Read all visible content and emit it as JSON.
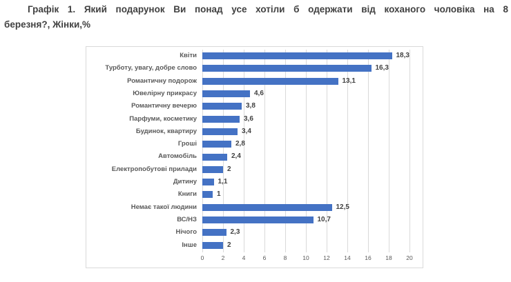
{
  "title": {
    "line1": "Графік 1. Який подарунок Ви понад усе хотіли б одержати від коханого чоловіка на 8",
    "line2": "березня?, Жінки,%"
  },
  "chart_data": {
    "type": "bar",
    "orientation": "horizontal",
    "title": "Графік 1. Який подарунок Ви понад усе хотіли б одержати від коханого чоловіка на 8 березня?, Жінки,%",
    "categories": [
      "Квіти",
      "Турботу, увагу, добре слово",
      "Романтичну подорож",
      "Ювелірну прикрасу",
      "Романтичну вечерю",
      "Парфуми, косметику",
      "Будинок, квартиру",
      "Гроші",
      "Автомобіль",
      "Електропобутові прилади",
      "Дитину",
      "Книги",
      "Немає такої людини",
      "ВС/НЗ",
      "Нічого",
      "Інше"
    ],
    "values": [
      18.3,
      16.3,
      13.1,
      4.6,
      3.8,
      3.6,
      3.4,
      2.8,
      2.4,
      2,
      1.1,
      1,
      12.5,
      10.7,
      2.3,
      2
    ],
    "value_labels": [
      "18,3",
      "16,3",
      "13,1",
      "4,6",
      "3,8",
      "3,6",
      "3,4",
      "2,8",
      "2,4",
      "2",
      "1,1",
      "1",
      "12,5",
      "10,7",
      "2,3",
      "2"
    ],
    "x_ticks": [
      0,
      2,
      4,
      6,
      8,
      10,
      12,
      14,
      16,
      18,
      20
    ],
    "x_tick_labels": [
      "0",
      "2",
      "4",
      "6",
      "8",
      "10",
      "12",
      "14",
      "16",
      "18",
      "20"
    ],
    "xlim": [
      0,
      20
    ],
    "grid": "vertical-only",
    "legend": "none",
    "bar_color": "#4472C4"
  },
  "colors": {
    "bar": "#4472C4",
    "gridline": "#D9D9D9",
    "frame_border": "#D9D9D9",
    "title_text": "#404040",
    "category_text": "#595959",
    "value_text": "#404040",
    "tick_text": "#595959",
    "background": "#FFFFFF"
  }
}
